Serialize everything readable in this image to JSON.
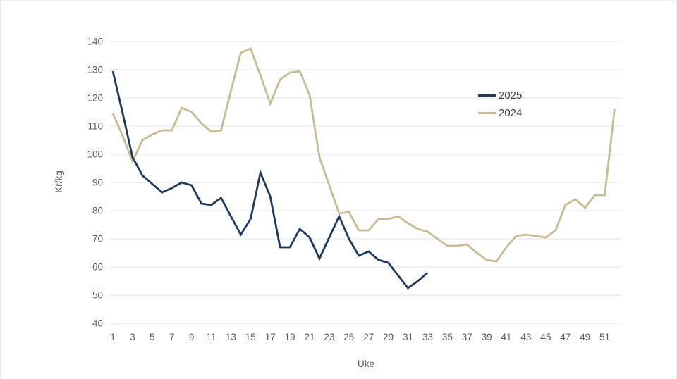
{
  "chart_data": {
    "type": "line",
    "title": "",
    "xlabel": "Uke",
    "ylabel": "Kr/kg",
    "ylim": [
      40,
      140
    ],
    "xlim": [
      1,
      52
    ],
    "yticks": [
      40,
      50,
      60,
      70,
      80,
      90,
      100,
      110,
      120,
      130,
      140
    ],
    "xticks": [
      1,
      3,
      5,
      7,
      9,
      11,
      13,
      15,
      17,
      19,
      21,
      23,
      25,
      27,
      29,
      31,
      33,
      35,
      37,
      39,
      41,
      43,
      45,
      47,
      49,
      51
    ],
    "grid": "horizontal",
    "gridline_color": "#e3e3e3",
    "legend_position": "inside-upper-right",
    "series": [
      {
        "name": "2025",
        "color": "#1f3a5f",
        "x": [
          1,
          2,
          3,
          4,
          5,
          6,
          7,
          8,
          9,
          10,
          11,
          12,
          13,
          14,
          15,
          16,
          17,
          18,
          19,
          20,
          21,
          22,
          23,
          24,
          25,
          26,
          27,
          28,
          29,
          30,
          31,
          32,
          33
        ],
        "values": [
          129.5,
          114.5,
          99,
          92.5,
          89.5,
          86.5,
          88,
          90,
          89,
          82.5,
          82,
          84.5,
          78,
          71.5,
          77,
          93.5,
          85,
          67,
          67,
          73.5,
          70.5,
          63,
          70.5,
          78,
          70,
          64,
          65.5,
          62.5,
          61.5,
          57,
          52.5,
          55,
          58
        ]
      },
      {
        "name": "2024",
        "color": "#c9bc93",
        "x": [
          1,
          2,
          3,
          4,
          5,
          6,
          7,
          8,
          9,
          10,
          11,
          12,
          13,
          14,
          15,
          16,
          17,
          18,
          19,
          20,
          21,
          22,
          23,
          24,
          25,
          26,
          27,
          28,
          29,
          30,
          31,
          32,
          33,
          34,
          35,
          36,
          37,
          38,
          39,
          40,
          41,
          42,
          43,
          44,
          45,
          46,
          47,
          48,
          49,
          50,
          51,
          52
        ],
        "values": [
          114.5,
          106.5,
          97.5,
          105,
          107,
          108.5,
          108.5,
          116.5,
          115,
          111,
          108,
          108.5,
          122.5,
          136,
          137.5,
          128,
          118,
          126.5,
          129,
          129.5,
          121,
          99,
          89,
          79,
          79.5,
          73,
          73,
          77,
          77,
          78,
          75.5,
          73.5,
          72.5,
          70,
          67.5,
          67.5,
          68,
          65,
          62.5,
          62,
          67,
          71,
          71.5,
          71,
          70.5,
          73,
          82,
          84,
          81,
          85.5,
          85.5,
          116
        ]
      }
    ]
  }
}
